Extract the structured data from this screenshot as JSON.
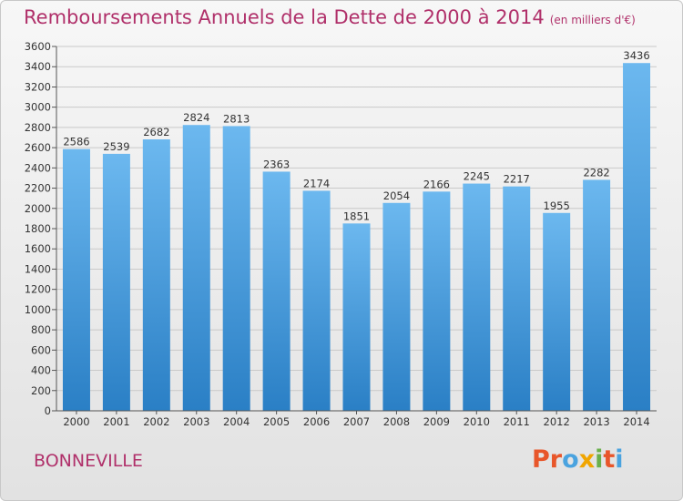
{
  "header": {
    "title": "Remboursements Annuels de la Dette de 2000 à 2014",
    "subtitle": "(en milliers d'€)"
  },
  "footer": {
    "commune": "BONNEVILLE",
    "logo_text": "Proxiti",
    "logo_colors": [
      "#e8562a",
      "#e8562a",
      "#4aa3df",
      "#f0a500",
      "#6ab04c",
      "#e8562a",
      "#4aa3df"
    ]
  },
  "colors": {
    "bar_light": "#6cb8ef",
    "bar_dark": "#2a7fc5",
    "title": "#b0306a",
    "grid": "#c9c9c9"
  },
  "chart_data": {
    "type": "bar",
    "title": "Remboursements Annuels de la Dette de 2000 à 2014",
    "xlabel": "",
    "ylabel": "",
    "categories": [
      "2000",
      "2001",
      "2002",
      "2003",
      "2004",
      "2005",
      "2006",
      "2007",
      "2008",
      "2009",
      "2010",
      "2011",
      "2012",
      "2013",
      "2014"
    ],
    "values": [
      2586,
      2539,
      2682,
      2824,
      2813,
      2363,
      2174,
      1851,
      2054,
      2166,
      2245,
      2217,
      1955,
      2282,
      3436
    ],
    "ylim": [
      0,
      3600
    ],
    "yticks": [
      0,
      200,
      400,
      600,
      800,
      1000,
      1200,
      1400,
      1600,
      1800,
      2000,
      2200,
      2400,
      2600,
      2800,
      3000,
      3200,
      3400,
      3600
    ],
    "grid": true,
    "legend": "none"
  }
}
